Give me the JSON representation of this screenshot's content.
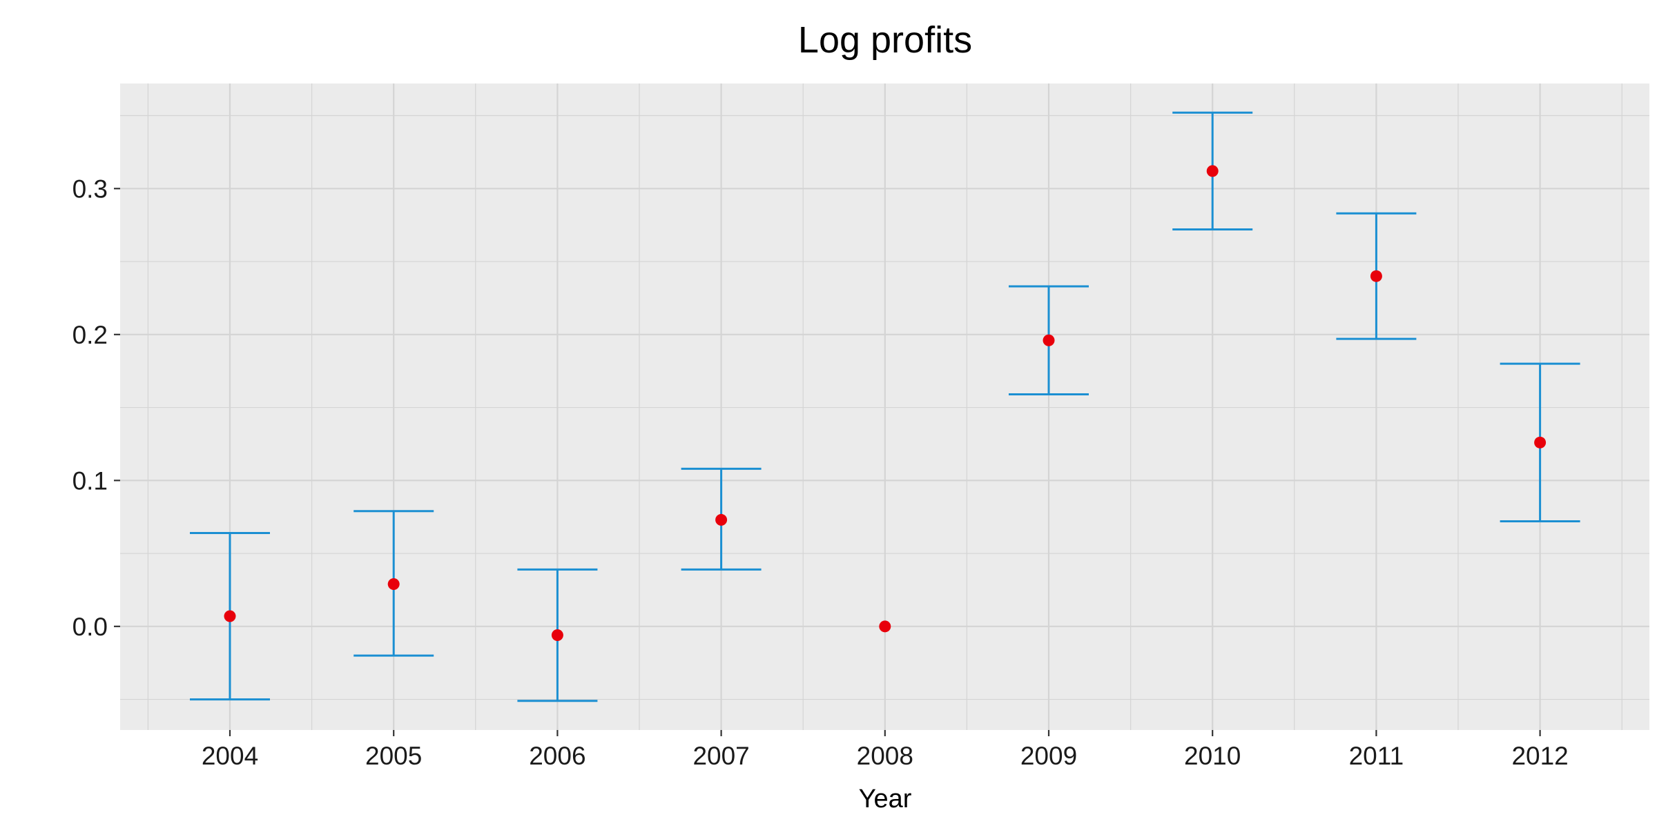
{
  "chart_data": {
    "type": "scatter",
    "title": "Log profits",
    "xlabel": "Year",
    "ylabel": "",
    "categories": [
      "2004",
      "2005",
      "2006",
      "2007",
      "2008",
      "2009",
      "2010",
      "2011",
      "2012"
    ],
    "series": [
      {
        "values": [
          0.007,
          0.029,
          -0.006,
          0.073,
          0.0,
          0.196,
          0.312,
          0.24,
          0.126
        ],
        "lower": [
          -0.05,
          -0.02,
          -0.051,
          0.039,
          null,
          0.159,
          0.272,
          0.197,
          0.072
        ],
        "upper": [
          0.064,
          0.079,
          0.039,
          0.108,
          null,
          0.233,
          0.352,
          0.283,
          0.18
        ]
      }
    ],
    "ylim": [
      -0.071,
      0.372
    ],
    "yticks": [
      0.0,
      0.1,
      0.2,
      0.3
    ],
    "ytick_labels": [
      "0.0",
      "0.1",
      "0.2",
      "0.3"
    ],
    "grid": true,
    "legend": "none",
    "colors": {
      "panel": "#EBEBEB",
      "grid": "#D4D4D4",
      "point": "#E8000B",
      "errorbar": "#1B8FD2",
      "text": "#000000",
      "tick_text": "#1A1A1A"
    }
  }
}
